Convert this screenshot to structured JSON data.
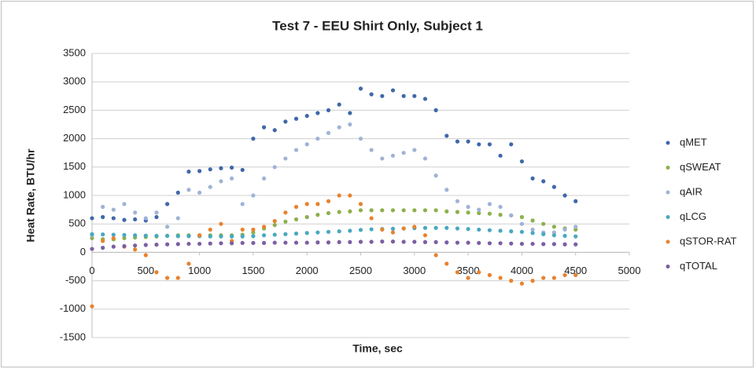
{
  "chart_data": {
    "type": "scatter",
    "title": "Test 7 - EEU Shirt Only, Subject 1",
    "x_label": "Time, sec",
    "y_label": "Heat Rate, BTU/hr",
    "xlim": [
      0,
      5000
    ],
    "ylim": [
      -1500,
      3500
    ],
    "xticks": [
      0,
      500,
      1000,
      1500,
      2000,
      2500,
      3000,
      3500,
      4000,
      4500,
      5000
    ],
    "yticks": [
      -1500,
      -1000,
      -500,
      0,
      500,
      1000,
      1500,
      2000,
      2500,
      3000,
      3500
    ],
    "grid": true,
    "legend": "right",
    "x": [
      0,
      100,
      200,
      300,
      400,
      500,
      600,
      700,
      800,
      900,
      1000,
      1100,
      1200,
      1300,
      1400,
      1500,
      1600,
      1700,
      1800,
      1900,
      2000,
      2100,
      2200,
      2300,
      2400,
      2500,
      2600,
      2700,
      2800,
      2900,
      3000,
      3100,
      3200,
      3300,
      3400,
      3500,
      3600,
      3700,
      3800,
      3900,
      4000,
      4100,
      4200,
      4300,
      4400,
      4500
    ],
    "series": [
      {
        "name": "qMET",
        "color": "#3f68a8",
        "values": [
          600,
          620,
          600,
          570,
          580,
          560,
          620,
          850,
          1050,
          1420,
          1430,
          1460,
          1480,
          1490,
          1450,
          2000,
          2200,
          2150,
          2300,
          2350,
          2400,
          2450,
          2500,
          2600,
          2450,
          2880,
          2780,
          2750,
          2850,
          2750,
          2750,
          2700,
          2500,
          2050,
          1950,
          1950,
          1900,
          1900,
          1700,
          1900,
          1600,
          1300,
          1250,
          1150,
          1000,
          900
        ]
      },
      {
        "name": "qSWEAT",
        "color": "#8cb04c",
        "values": [
          250,
          230,
          230,
          250,
          260,
          270,
          280,
          290,
          300,
          300,
          300,
          300,
          300,
          300,
          310,
          350,
          420,
          480,
          540,
          580,
          620,
          660,
          690,
          710,
          720,
          740,
          740,
          740,
          740,
          740,
          740,
          740,
          740,
          720,
          710,
          700,
          690,
          680,
          660,
          650,
          620,
          560,
          500,
          450,
          420,
          400
        ]
      },
      {
        "name": "qAIR",
        "color": "#9fb3d6",
        "values": [
          300,
          800,
          750,
          850,
          700,
          600,
          700,
          450,
          600,
          1100,
          1050,
          1150,
          1250,
          1300,
          850,
          1000,
          1300,
          1500,
          1650,
          1800,
          1900,
          2000,
          2100,
          2200,
          2250,
          2000,
          1800,
          1650,
          1700,
          1750,
          1800,
          1650,
          1350,
          1100,
          900,
          800,
          750,
          850,
          800,
          650,
          500,
          400,
          350,
          350,
          400,
          450
        ]
      },
      {
        "name": "qLCG",
        "color": "#4aa8c0",
        "values": [
          320,
          315,
          310,
          305,
          300,
          295,
          290,
          290,
          285,
          285,
          285,
          280,
          280,
          280,
          280,
          285,
          300,
          310,
          320,
          330,
          340,
          350,
          360,
          370,
          380,
          395,
          405,
          410,
          415,
          420,
          425,
          430,
          430,
          430,
          420,
          410,
          400,
          390,
          380,
          370,
          360,
          340,
          320,
          300,
          290,
          280
        ]
      },
      {
        "name": "qSTOR-RAT",
        "color": "#e8822e",
        "values": [
          -950,
          200,
          250,
          100,
          50,
          -50,
          -350,
          -450,
          -450,
          -200,
          300,
          400,
          500,
          200,
          400,
          400,
          450,
          550,
          700,
          800,
          850,
          850,
          900,
          1000,
          1000,
          850,
          600,
          400,
          350,
          420,
          450,
          300,
          -50,
          -200,
          -350,
          -450,
          -350,
          -400,
          -450,
          -500,
          -550,
          -500,
          -450,
          -450,
          -400,
          -400
        ]
      },
      {
        "name": "qTOTAL",
        "color": "#7b5fa3",
        "values": [
          60,
          80,
          100,
          110,
          120,
          130,
          135,
          140,
          145,
          150,
          150,
          155,
          160,
          160,
          165,
          165,
          165,
          170,
          170,
          170,
          170,
          175,
          175,
          180,
          180,
          185,
          185,
          190,
          190,
          185,
          185,
          180,
          180,
          175,
          170,
          170,
          165,
          160,
          160,
          155,
          150,
          150,
          145,
          145,
          140,
          140
        ]
      }
    ]
  }
}
